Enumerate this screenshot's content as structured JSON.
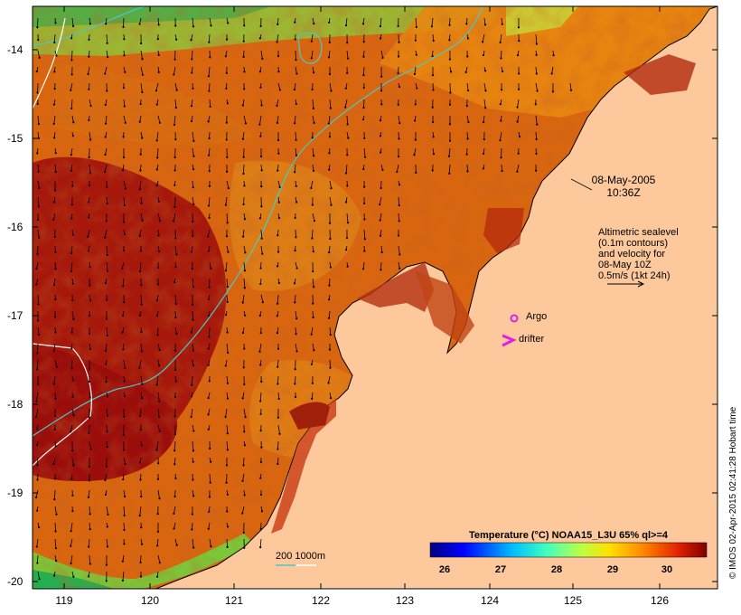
{
  "map": {
    "y_axis_ticks": [
      "-14",
      "-15",
      "-16",
      "-17",
      "-18",
      "-19",
      "-20"
    ],
    "x_axis_ticks": [
      "119",
      "120",
      "121",
      "122",
      "123",
      "124",
      "125",
      "126"
    ],
    "datetime_lines": [
      "08-May-2005",
      "10:36Z"
    ],
    "altimetry_lines": [
      "Altimetric sealevel",
      "(0.1m contours)",
      "and velocity for",
      "08-May 10Z",
      "0.5m/s (1kt 24h)"
    ],
    "argo_label": "Argo",
    "drifter_label": "drifter",
    "depth_legend": "200  1000m",
    "colorbar_title": "Temperature (°C) NOAA15_L3U 65% ql>=4",
    "colorbar_ticks": [
      "26",
      "27",
      "28",
      "29",
      "30"
    ],
    "credit": "© IMOS 02-Apr-2015 02:41:28 Hobart time",
    "colors": {
      "land": "#fdc89c",
      "sst_warm": "#c03a10",
      "sst_hot": "#9e0d0b",
      "sst_mid": "#e8850e",
      "sst_cool": "#7ac832",
      "contour_200m": "#49c9c9",
      "contour_1000m": "#ffffff",
      "argo": "#e020e0",
      "drifter": "#e020e0"
    }
  }
}
